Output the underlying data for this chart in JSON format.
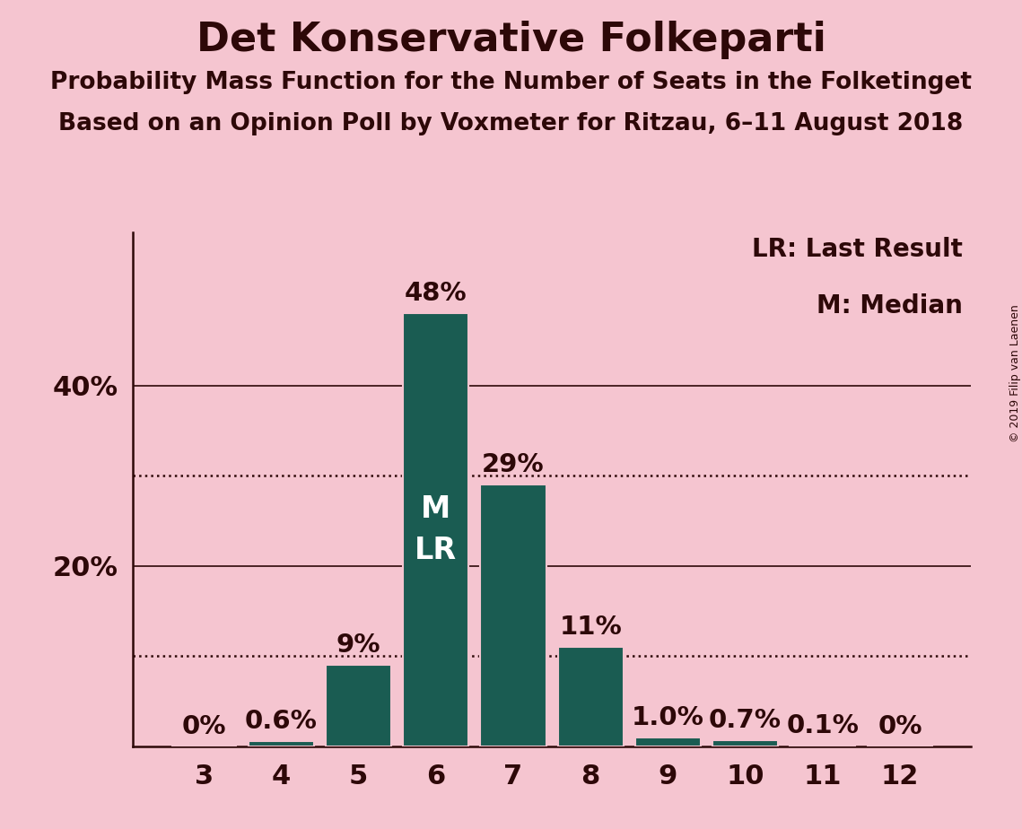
{
  "title": "Det Konservative Folkeparti",
  "subtitle1": "Probability Mass Function for the Number of Seats in the Folketinget",
  "subtitle2": "Based on an Opinion Poll by Voxmeter for Ritzau, 6–11 August 2018",
  "copyright": "© 2019 Filip van Laenen",
  "seats": [
    3,
    4,
    5,
    6,
    7,
    8,
    9,
    10,
    11,
    12
  ],
  "values": [
    0.0,
    0.6,
    9.0,
    48.0,
    29.0,
    11.0,
    1.0,
    0.7,
    0.1,
    0.0
  ],
  "bar_color": "#1a5c52",
  "bar_edge_color": "#f5c5d0",
  "background_color": "#f5c5d0",
  "label_color": "#2d0808",
  "bar_labels": [
    "0%",
    "0.6%",
    "9%",
    "48%",
    "29%",
    "11%",
    "1.0%",
    "0.7%",
    "0.1%",
    "0%"
  ],
  "median_seat": 6,
  "last_result_seat": 6,
  "legend_lr": "LR: Last Result",
  "legend_m": "M: Median",
  "yticks": [
    20,
    40
  ],
  "dotted_lines": [
    10,
    30
  ],
  "ylim": [
    0,
    57
  ],
  "title_fontsize": 32,
  "subtitle_fontsize": 19,
  "tick_fontsize": 22,
  "bar_label_fontsize": 21,
  "legend_fontsize": 20,
  "inside_label_fontsize": 24
}
